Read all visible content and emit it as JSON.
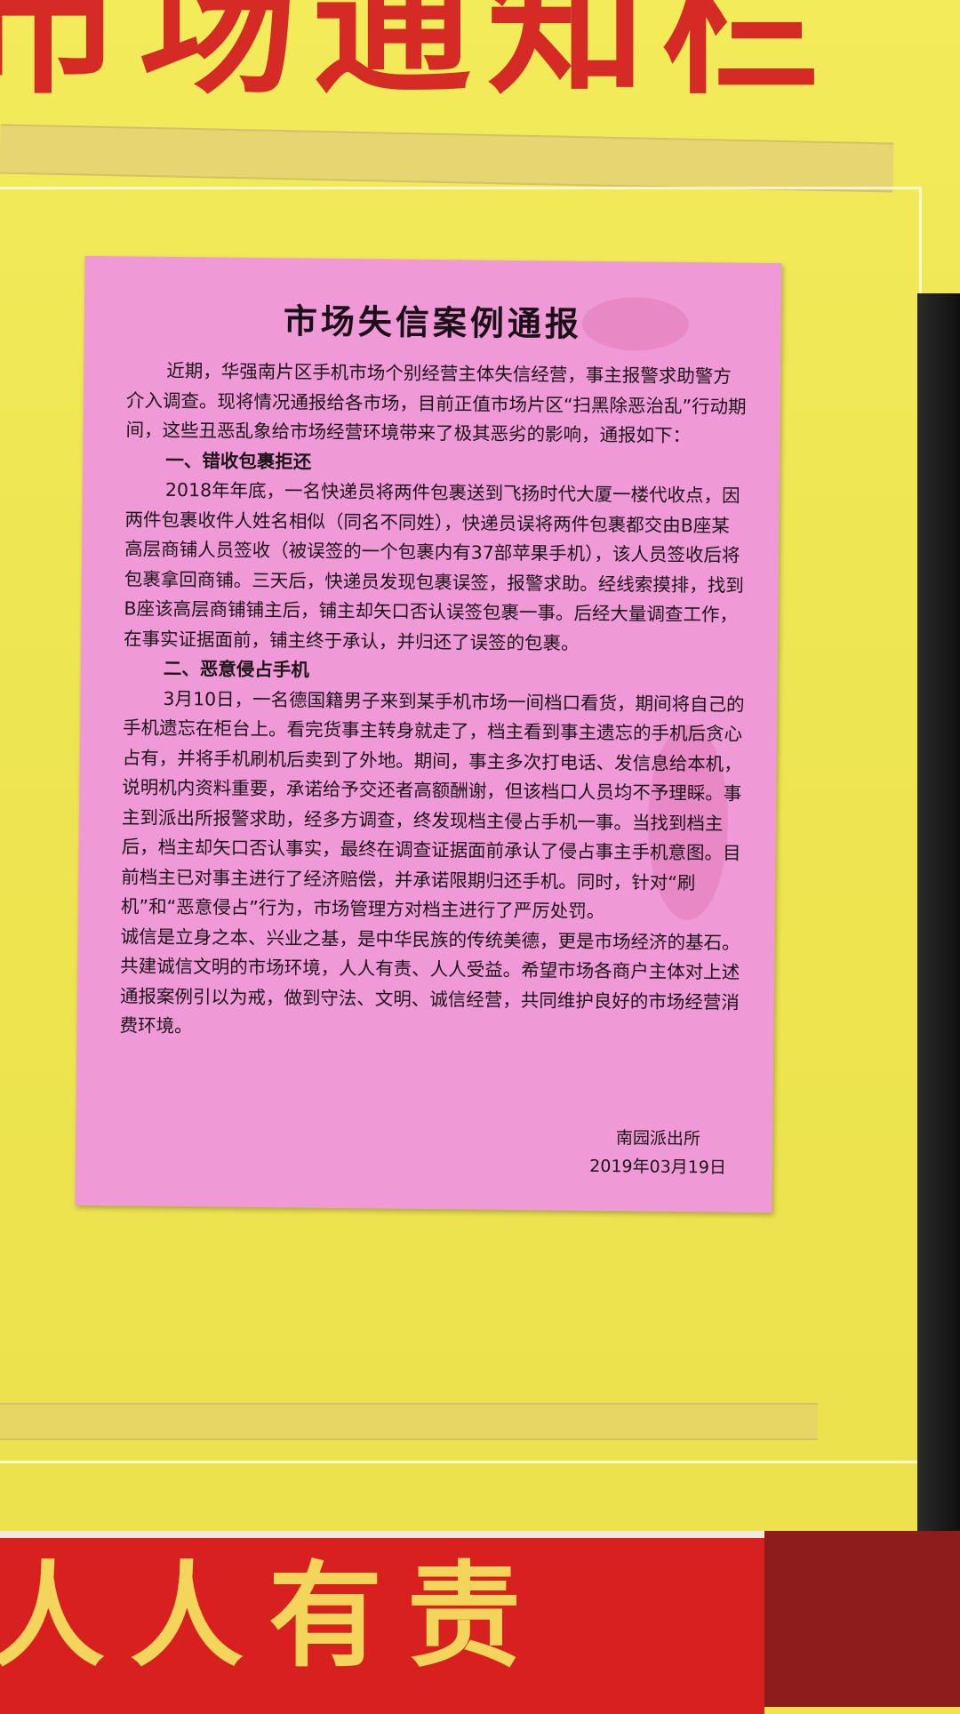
{
  "board": {
    "header": "市场通知栏",
    "bottom_sign": "人人有责"
  },
  "notice": {
    "title": "市场失信案例通报",
    "intro": "近期，华强南片区手机市场个别经营主体失信经营，事主报警求助警方介入调查。现将情况通报给各市场，目前正值市场片区“扫黑除恶治乱”行动期间，这些丑恶乱象给市场经营环境带来了极其恶劣的影响，通报如下：",
    "section1_heading": "一、错收包裹拒还",
    "section1_text": "2018年年底，一名快递员将两件包裹送到飞扬时代大厦一楼代收点，因两件包裹收件人姓名相似（同名不同姓），快递员误将两件包裹都交由B座某高层商铺人员签收（被误签的一个包裹内有37部苹果手机），该人员签收后将包裹拿回商铺。三天后，快递员发现包裹误签，报警求助。经线索摸排，找到B座该高层商铺铺主后，铺主却矢口否认误签包裹一事。后经大量调查工作，在事实证据面前，铺主终于承认，并归还了误签的包裹。",
    "section2_heading": "二、恶意侵占手机",
    "section2_text": "3月10日，一名德国籍男子来到某手机市场一间档口看货，期间将自己的手机遗忘在柜台上。看完货事主转身就走了，档主看到事主遗忘的手机后贪心占有，并将手机刷机后卖到了外地。期间，事主多次打电话、发信息给本机，说明机内资料重要，承诺给予交还者高额酬谢，但该档口人员均不予理睬。事主到派出所报警求助，经多方调查，终发现档主侵占手机一事。当找到档主后，档主却矢口否认事实，最终在调查证据面前承认了侵占事主手机意图。目前档主已对事主进行了经济赔偿，并承诺限期归还手机。同时，针对“刷机”和“恶意侵占”行为，市场管理方对档主进行了严厉处罚。",
    "closing": "诚信是立身之本、兴业之基，是中华民族的传统美德，更是市场经济的基石。共建诚信文明的市场环境，人人有责、人人受益。希望市场各商户主体对上述通报案例引以为戒，做到守法、文明、诚信经营，共同维护良好的市场经营消费环境。",
    "issuer": "南园派出所",
    "date": "2019年03月19日"
  },
  "colors": {
    "board_yellow": "#efe44c",
    "header_red": "#d42b24",
    "notice_pink": "#ef9ad6",
    "sign_red": "#d8211f",
    "sign_text_gold": "#f2d55a"
  }
}
